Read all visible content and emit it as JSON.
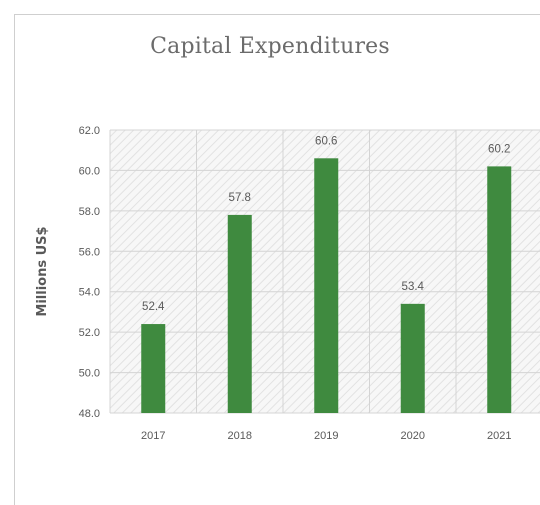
{
  "chart_data": {
    "type": "bar",
    "title": "Capital Expenditures",
    "xlabel": "",
    "ylabel": "Millions US$",
    "categories": [
      "2017",
      "2018",
      "2019",
      "2020",
      "2021"
    ],
    "values": [
      52.4,
      57.8,
      60.6,
      53.4,
      60.2
    ],
    "data_labels": [
      "52.4",
      "57.8",
      "60.6",
      "53.4",
      "60.2"
    ],
    "ylim": [
      48.0,
      62.0
    ],
    "yticks": [
      "48.0",
      "50.0",
      "52.0",
      "54.0",
      "56.0",
      "58.0",
      "60.0",
      "62.0"
    ],
    "grid": true,
    "legend": "none",
    "colors": {
      "bar": "#3f8a3f",
      "grid": "#d4d4d4",
      "hatch": "#e2e2e2",
      "text": "#595959"
    }
  }
}
